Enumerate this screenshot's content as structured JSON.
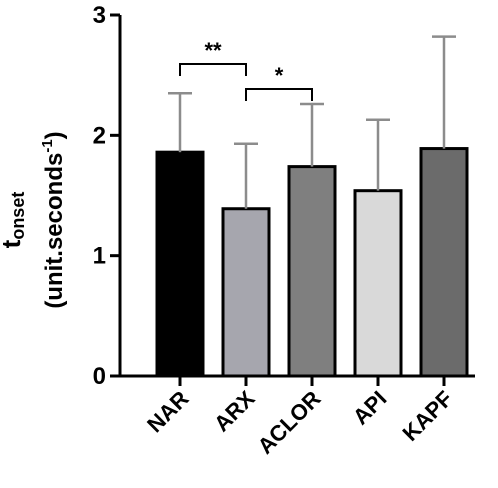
{
  "chart_data": {
    "type": "bar",
    "ylabel": {
      "main": "t",
      "subscript": "onset",
      "unit_prefix": "(unit.seconds",
      "unit_superscript": "-1",
      "unit_suffix": ")"
    },
    "ylim": [
      0,
      3
    ],
    "yticks": [
      "0",
      "1",
      "2",
      "3"
    ],
    "categories": [
      "NAR",
      "ARX",
      "ACLOR",
      "API",
      "KAPF"
    ],
    "values": [
      1.86,
      1.39,
      1.74,
      1.54,
      1.89
    ],
    "errors_upper": [
      2.35,
      1.93,
      2.26,
      2.13,
      2.82
    ],
    "bar_colors": [
      "#000000",
      "#a6a6ae",
      "#7f7f7f",
      "#d9d9d9",
      "#6b6b6b"
    ],
    "significance": [
      {
        "from": 0,
        "to": 1,
        "label": "**"
      },
      {
        "from": 1,
        "to": 2,
        "label": "*"
      }
    ],
    "grid": false,
    "legend": "none"
  }
}
